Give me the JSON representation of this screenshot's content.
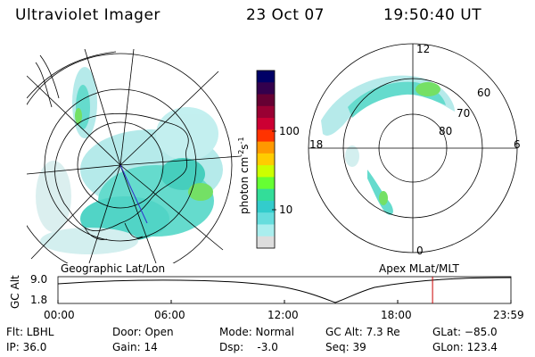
{
  "header": {
    "instrument": "Ultraviolet Imager",
    "date": "23 Oct 07",
    "time": "19:50:40 UT"
  },
  "left_map": {
    "label": "Geographic Lat/Lon"
  },
  "right_map": {
    "label": "Apex MLat/MLT",
    "mlt_labels": [
      "12",
      "18",
      "6",
      "0"
    ],
    "lat_labels": [
      "60",
      "70",
      "80"
    ]
  },
  "colorbar": {
    "unit_main": "photon cm",
    "unit_sup1": "-2",
    "unit_s": "s",
    "unit_sup2": "-1",
    "tick_labels": [
      "100",
      "10"
    ],
    "colors": [
      "#000066",
      "#33004d",
      "#660033",
      "#990033",
      "#cc0033",
      "#ff3300",
      "#ff9900",
      "#ffcc00",
      "#ccff00",
      "#66ff33",
      "#33dd99",
      "#33cccc",
      "#66dddd",
      "#aaeeee",
      "#dddddd"
    ]
  },
  "altitude_panel": {
    "axis_label": "GC Alt",
    "y_ticks": [
      "9.0",
      "1.8"
    ],
    "x_ticks": [
      "00:00",
      "06:00",
      "12:00",
      "18:00",
      "23:59"
    ],
    "current_time_fraction": 0.827,
    "marker_color": "#cc0000"
  },
  "info": {
    "flt": "Flt: LBHL",
    "ip": "IP: 36.0",
    "door": "Door: Open",
    "gain": "Gain: 14",
    "mode": "Mode: Normal",
    "dsp": "Dsp:    -3.0",
    "gc_alt": "GC Alt: 7.3 Re",
    "seq": "Seq: 39",
    "glat": "GLat: −85.0",
    "glon": "GLon: 123.4"
  }
}
